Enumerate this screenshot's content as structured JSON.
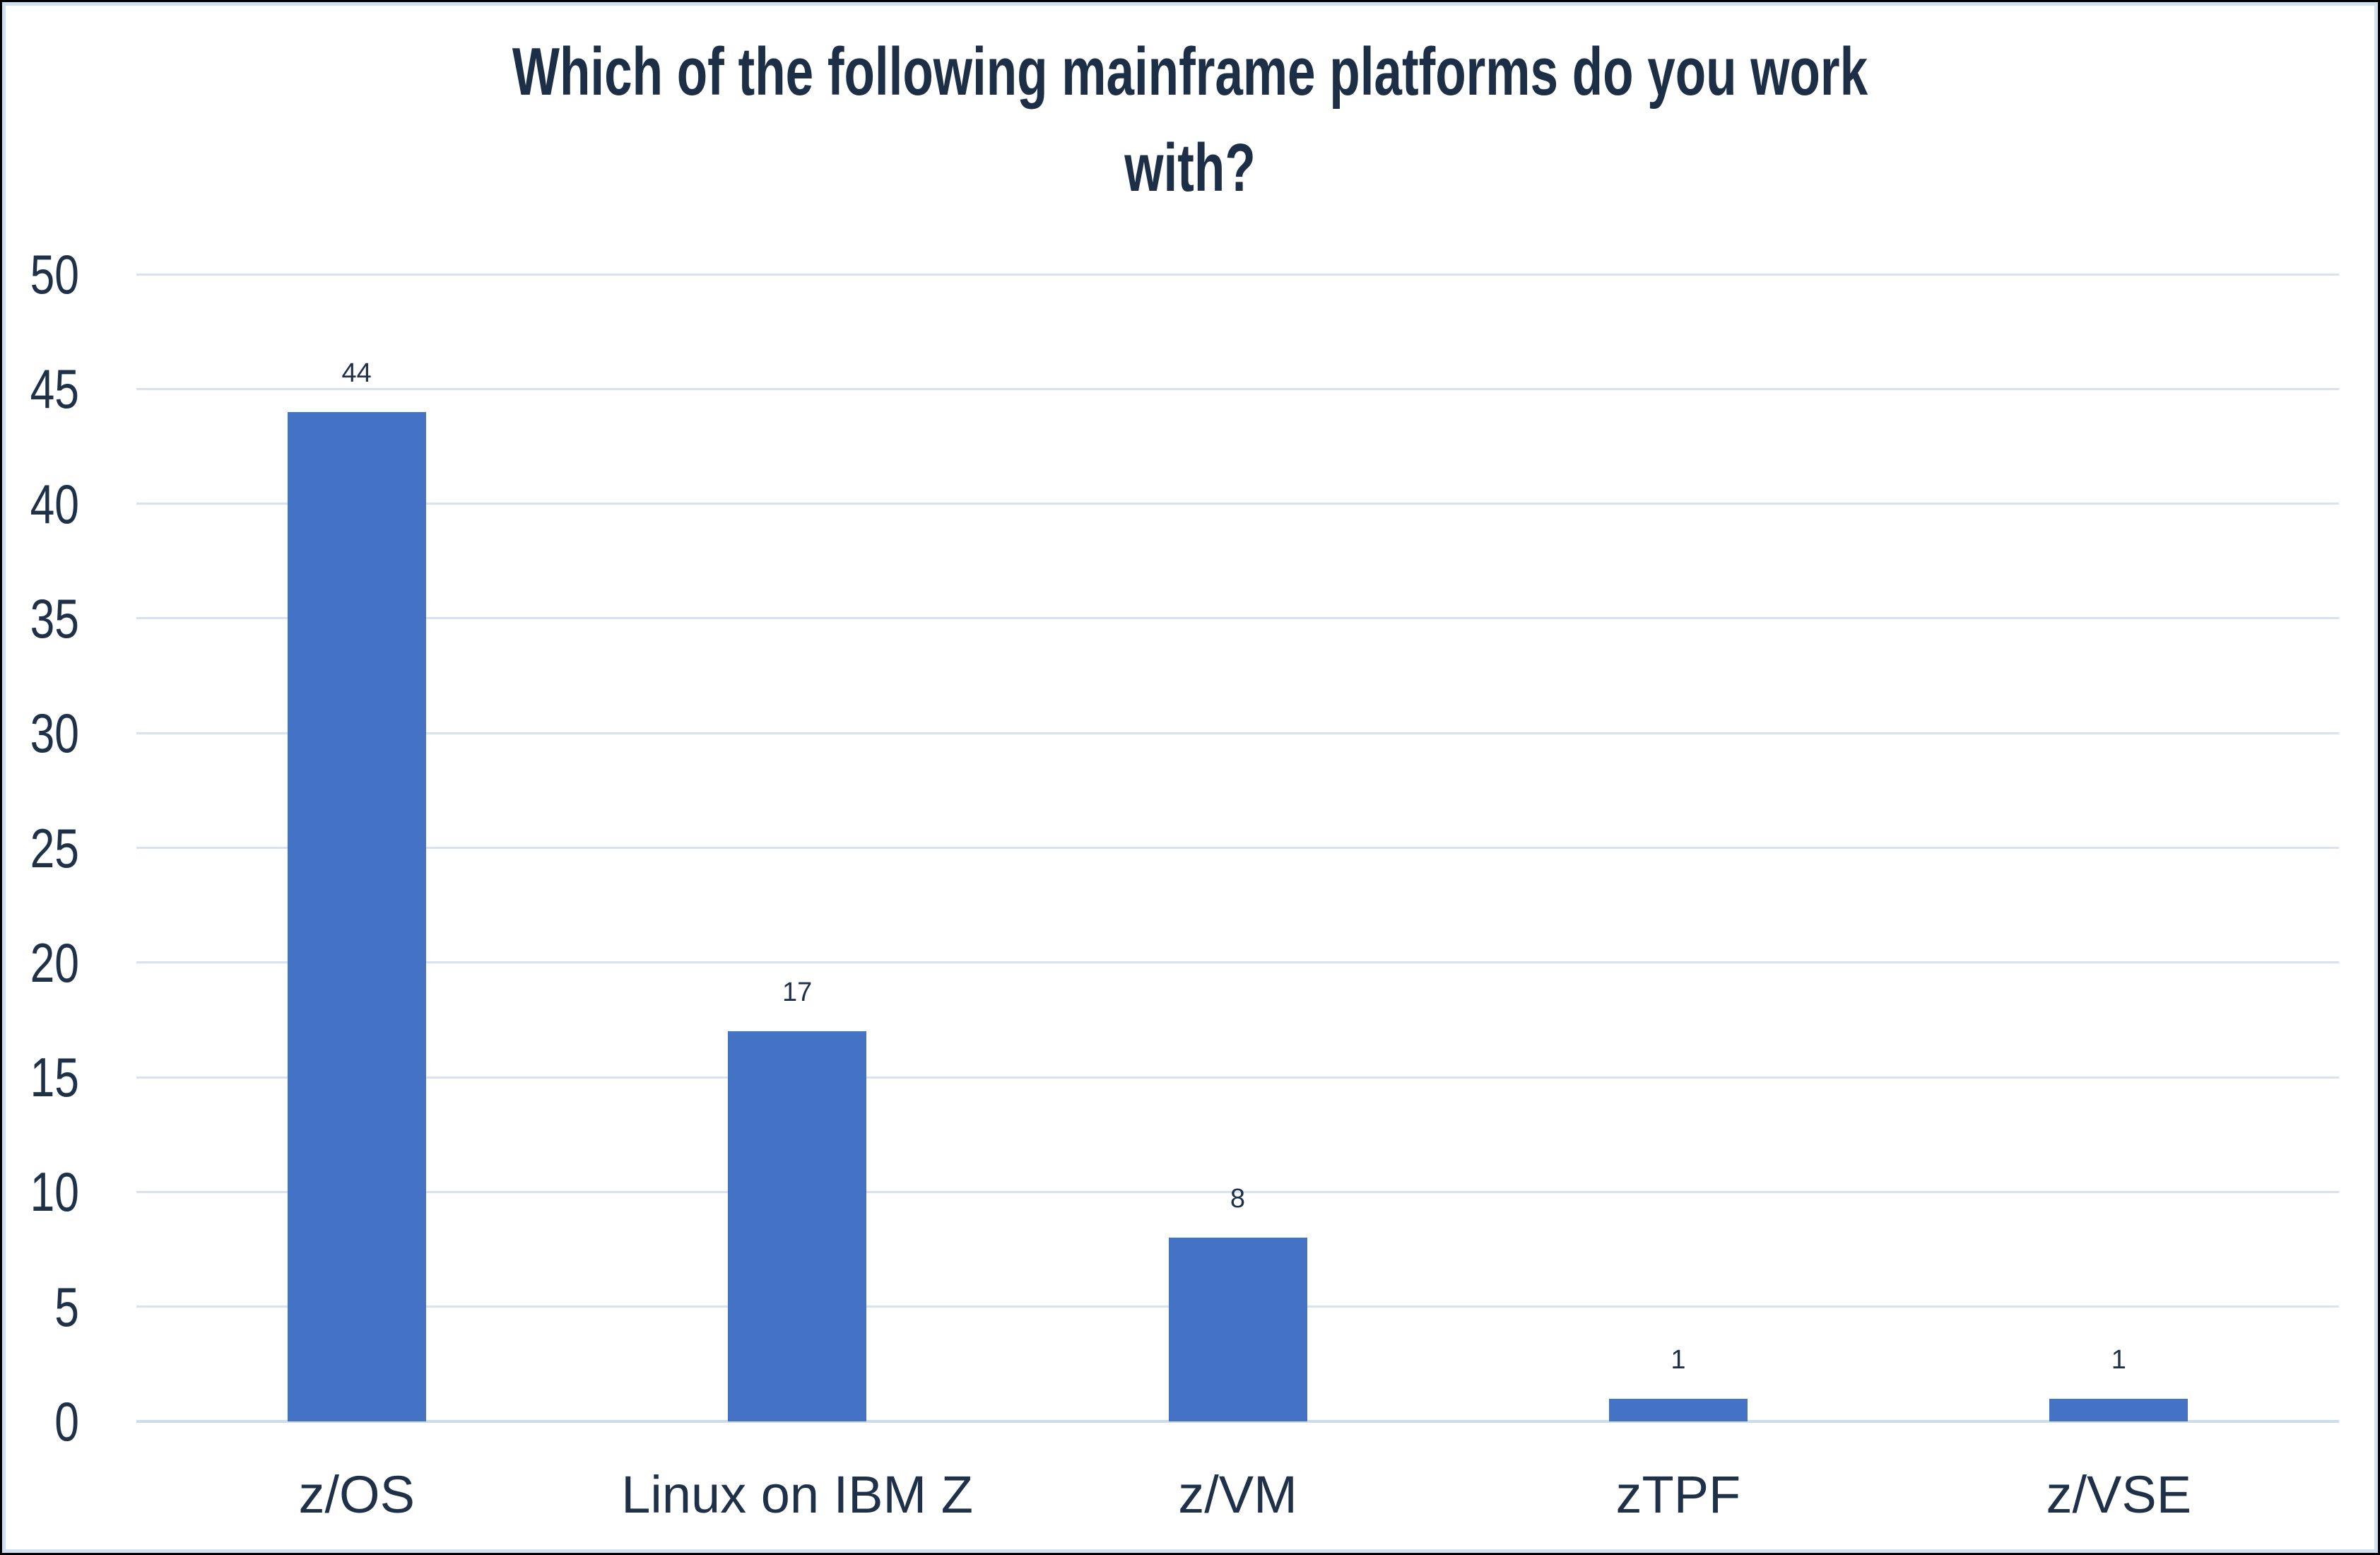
{
  "chart_data": {
    "type": "bar",
    "title": "Which of the following mainframe platforms do you work with?",
    "title_lines": [
      "Which of the following mainframe platforms do you work",
      "with?"
    ],
    "categories": [
      "z/OS",
      "Linux on IBM Z",
      "z/VM",
      "zTPF",
      "z/VSE"
    ],
    "values": [
      44,
      17,
      8,
      1,
      1
    ],
    "data_labels": [
      "44",
      "17",
      "8",
      "1",
      "1"
    ],
    "xlabel": "",
    "ylabel": "",
    "ylim": [
      0,
      50
    ],
    "ytick_interval": 5,
    "yticks": [
      0,
      5,
      10,
      15,
      20,
      25,
      30,
      35,
      40,
      45,
      50
    ],
    "grid": true,
    "legend": "none",
    "colors": {
      "bar": "#4472C4",
      "text": "#1E3148",
      "title_text": "#1D2F46",
      "gridline": "#D9E2F3",
      "baseline": "#CCDBEE",
      "chart_border": "#CFE0F3",
      "outer_border": "#000000",
      "background": "#FFFFFF"
    }
  }
}
